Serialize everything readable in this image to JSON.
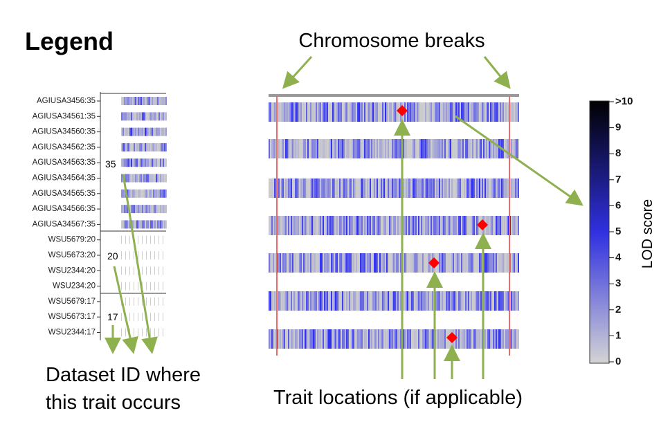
{
  "title": "Legend",
  "annotations": {
    "chromosome_breaks": "Chromosome breaks",
    "dataset_id": [
      "Dataset ID where",
      "this trait occurs"
    ],
    "trait_locations": "Trait locations (if applicable)"
  },
  "legend_rows": [
    "AGIUSA3456:35",
    "AGIUSA34561:35",
    "AGIUSA34560:35",
    "AGIUSA34562:35",
    "AGIUSA34563:35",
    "AGIUSA34564:35",
    "AGIUSA34565:35",
    "AGIUSA34566:35",
    "AGIUSA34567:35",
    "WSU5679:20",
    "WSU5673:20",
    "WSU2344:20",
    "WSU234:20",
    "WSU5679:17",
    "WSU5673:17",
    "WSU2344:17"
  ],
  "dataset_ids": [
    "35",
    "20",
    "17"
  ],
  "colorbar": {
    "ticks": [
      ">10",
      "9",
      "8",
      "7",
      "6",
      "5",
      "4",
      "3",
      "2",
      "1",
      "0"
    ],
    "label": "LOD score"
  }
}
